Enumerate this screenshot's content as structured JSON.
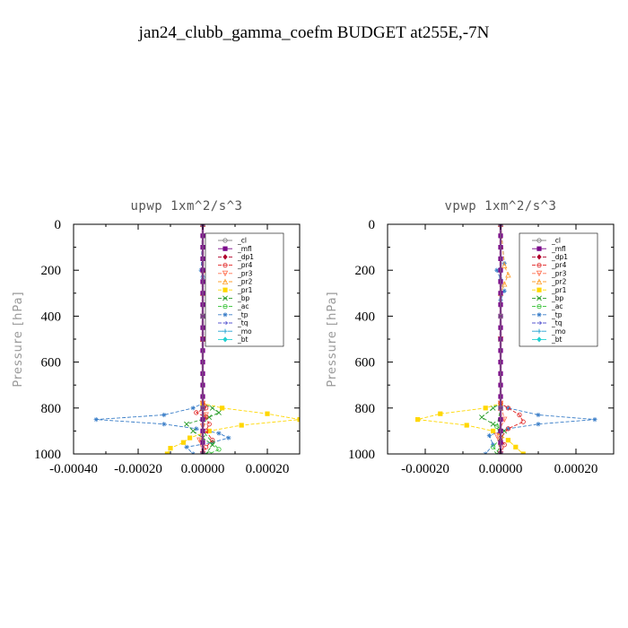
{
  "title": "jan24_clubb_gamma_coefm  BUDGET at255E,-7N",
  "chart_data": [
    {
      "type": "line",
      "title": "upwp   1xm^2/s^3",
      "ylabel": "Pressure [hPa]",
      "xlabel": "",
      "xlim": [
        -0.0004,
        0.0003
      ],
      "ylim": [
        1000,
        0
      ],
      "xticks": [
        -0.0004,
        -0.0002,
        0.0,
        0.0002
      ],
      "xtick_labels": [
        "-0.00040",
        "-0.00020",
        "0.00000",
        "0.00020"
      ],
      "yticks": [
        0,
        200,
        400,
        600,
        800,
        1000
      ],
      "ytick_labels": [
        "0",
        "200",
        "400",
        "600",
        "800",
        "1000"
      ],
      "legend_position": "top-right",
      "series": [
        {
          "name": "_cl",
          "color": "#808080",
          "dash": "solid",
          "marker": "circle",
          "x": [
            0,
            0,
            0,
            0
          ],
          "y": [
            0,
            400,
            800,
            1000
          ]
        },
        {
          "name": "_mfl",
          "color": "#7b0a8a",
          "dash": "solid",
          "marker": "square",
          "x": [
            0,
            0,
            0,
            0,
            0,
            0,
            0,
            0,
            0,
            0,
            0,
            0,
            0,
            0,
            0,
            0,
            0,
            0,
            0,
            0,
            0
          ],
          "y": [
            0,
            50,
            100,
            150,
            200,
            250,
            300,
            350,
            400,
            450,
            500,
            550,
            600,
            650,
            700,
            750,
            800,
            850,
            900,
            950,
            1000
          ]
        },
        {
          "name": "_dp1",
          "color": "#b0002a",
          "dash": "dashed",
          "marker": "diamond",
          "x": [
            0,
            0,
            0,
            0,
            0,
            0,
            0,
            0,
            0,
            0,
            0
          ],
          "y": [
            0,
            100,
            200,
            300,
            400,
            500,
            600,
            700,
            800,
            900,
            1000
          ]
        },
        {
          "name": "_pr4",
          "color": "#e02020",
          "dash": "dashed",
          "marker": "circle",
          "x": [
            0,
            0,
            0,
            5e-06,
            1e-05,
            -2e-05,
            1e-05,
            2e-05,
            1e-05,
            3e-05,
            1e-05,
            0
          ],
          "y": [
            0,
            400,
            750,
            790,
            800,
            820,
            840,
            870,
            900,
            940,
            970,
            1000
          ]
        },
        {
          "name": "_pr3",
          "color": "#ff7050",
          "dash": "dashed",
          "marker": "triangle-down",
          "x": [
            0,
            0,
            0,
            1e-05,
            0,
            -1e-05,
            0
          ],
          "y": [
            0,
            500,
            780,
            830,
            880,
            940,
            1000
          ]
        },
        {
          "name": "_pr2",
          "color": "#ffa030",
          "dash": "dashed",
          "marker": "triangle",
          "x": [
            0,
            2e-06,
            0,
            0,
            0,
            0
          ],
          "y": [
            0,
            200,
            300,
            500,
            800,
            1000
          ]
        },
        {
          "name": "_pr1",
          "color": "#ffd700",
          "dash": "dashed",
          "marker": "square",
          "x": [
            0,
            0,
            0,
            6e-05,
            0.0002,
            0.0003,
            0.00012,
            2e-05,
            -4e-05,
            -6e-05,
            -0.0001,
            -0.00011
          ],
          "y": [
            0,
            500,
            780,
            800,
            825,
            850,
            875,
            900,
            930,
            950,
            975,
            1000
          ]
        },
        {
          "name": "_bp",
          "color": "#2a9d2a",
          "dash": "dashed",
          "marker": "x",
          "x": [
            0,
            0,
            0,
            3e-05,
            5e-05,
            2e-05,
            -5e-05,
            -3e-05,
            0,
            3e-05,
            1e-05
          ],
          "y": [
            0,
            400,
            780,
            800,
            820,
            840,
            870,
            900,
            930,
            960,
            1000
          ]
        },
        {
          "name": "_ac",
          "color": "#30c030",
          "dash": "dashed",
          "marker": "circle",
          "x": [
            0,
            0,
            0,
            5e-06,
            0,
            3e-05,
            5e-05,
            2e-05
          ],
          "y": [
            0,
            500,
            800,
            850,
            900,
            950,
            980,
            1000
          ]
        },
        {
          "name": "_tp",
          "color": "#3a7ec8",
          "dash": "dashed",
          "marker": "star",
          "x": [
            0,
            -5e-06,
            0,
            0,
            0,
            -3e-05,
            -0.00012,
            -0.00033,
            -0.00012,
            -2e-05,
            5e-05,
            8e-05,
            3e-05,
            -5e-05,
            -3e-05
          ],
          "y": [
            0,
            200,
            230,
            500,
            780,
            800,
            830,
            850,
            870,
            890,
            910,
            930,
            950,
            970,
            1000
          ]
        },
        {
          "name": "_tq",
          "color": "#5a5ad0",
          "dash": "dashed",
          "marker": "arrow",
          "x": [
            0,
            0,
            0,
            0
          ],
          "y": [
            0,
            400,
            800,
            1000
          ]
        },
        {
          "name": "_mo",
          "color": "#20a0d0",
          "dash": "dashdot",
          "marker": "plus",
          "x": [
            0,
            0,
            0,
            0
          ],
          "y": [
            0,
            400,
            800,
            1000
          ]
        },
        {
          "name": "_bt",
          "color": "#20d0d0",
          "dash": "solid",
          "marker": "diamond",
          "x": [
            0,
            0,
            0,
            0
          ],
          "y": [
            0,
            400,
            800,
            1000
          ]
        }
      ]
    },
    {
      "type": "line",
      "title": "vpwp   1xm^2/s^3",
      "ylabel": "Pressure [hPa]",
      "xlabel": "",
      "xlim": [
        -0.0003,
        0.0003
      ],
      "ylim": [
        1000,
        0
      ],
      "xticks": [
        -0.0002,
        0.0,
        0.0002
      ],
      "xtick_labels": [
        "-0.00020",
        "0.00000",
        "0.00020"
      ],
      "yticks": [
        0,
        200,
        400,
        600,
        800,
        1000
      ],
      "ytick_labels": [
        "0",
        "200",
        "400",
        "600",
        "800",
        "1000"
      ],
      "legend_position": "top-right",
      "series": [
        {
          "name": "_cl",
          "color": "#808080",
          "dash": "solid",
          "marker": "circle",
          "x": [
            0,
            0,
            0,
            0
          ],
          "y": [
            0,
            400,
            800,
            1000
          ]
        },
        {
          "name": "_mfl",
          "color": "#7b0a8a",
          "dash": "solid",
          "marker": "square",
          "x": [
            0,
            0,
            0,
            0,
            0,
            0,
            0,
            0,
            0,
            0,
            0,
            0,
            0,
            0,
            0,
            0,
            0,
            0,
            0,
            0,
            0
          ],
          "y": [
            0,
            50,
            100,
            150,
            200,
            250,
            300,
            350,
            400,
            450,
            500,
            550,
            600,
            650,
            700,
            750,
            800,
            850,
            900,
            950,
            1000
          ]
        },
        {
          "name": "_dp1",
          "color": "#b0002a",
          "dash": "dashed",
          "marker": "diamond",
          "x": [
            0,
            0,
            0,
            0,
            0,
            0,
            0,
            0,
            0,
            0,
            0
          ],
          "y": [
            0,
            100,
            200,
            300,
            400,
            500,
            600,
            700,
            800,
            900,
            1000
          ]
        },
        {
          "name": "_pr4",
          "color": "#e02020",
          "dash": "dashed",
          "marker": "circle",
          "x": [
            0,
            0,
            0,
            2e-05,
            5e-05,
            6e-05,
            2e-05,
            0,
            1e-05,
            0
          ],
          "y": [
            0,
            500,
            780,
            800,
            830,
            860,
            890,
            930,
            960,
            1000
          ]
        },
        {
          "name": "_pr3",
          "color": "#ff7050",
          "dash": "dashed",
          "marker": "triangle-down",
          "x": [
            0,
            0,
            0,
            1e-05,
            -1e-05,
            0
          ],
          "y": [
            0,
            500,
            780,
            850,
            920,
            1000
          ]
        },
        {
          "name": "_pr2",
          "color": "#ffa030",
          "dash": "dashed",
          "marker": "triangle",
          "x": [
            0,
            1e-05,
            2e-05,
            1e-05,
            0,
            0,
            0
          ],
          "y": [
            0,
            180,
            220,
            260,
            300,
            800,
            1000
          ]
        },
        {
          "name": "_pr1",
          "color": "#ffd700",
          "dash": "dashed",
          "marker": "square",
          "x": [
            0,
            0,
            0,
            -4e-05,
            -0.00016,
            -0.00022,
            -9e-05,
            -2e-05,
            2e-05,
            4e-05,
            6e-05
          ],
          "y": [
            0,
            500,
            780,
            800,
            825,
            850,
            875,
            900,
            940,
            970,
            1000
          ]
        },
        {
          "name": "_bp",
          "color": "#2a9d2a",
          "dash": "dashed",
          "marker": "x",
          "x": [
            0,
            0,
            0,
            -2e-05,
            -5e-05,
            -2e-05,
            1e-05,
            0,
            -1e-05
          ],
          "y": [
            0,
            500,
            780,
            800,
            840,
            870,
            900,
            950,
            1000
          ]
        },
        {
          "name": "_ac",
          "color": "#30c030",
          "dash": "dashed",
          "marker": "circle",
          "x": [
            0,
            0,
            0,
            -1e-05,
            0,
            -2e-05,
            0
          ],
          "y": [
            0,
            500,
            800,
            880,
            930,
            970,
            1000
          ]
        },
        {
          "name": "_tp",
          "color": "#3a7ec8",
          "dash": "dashed",
          "marker": "star",
          "x": [
            0,
            1e-05,
            -1e-05,
            0,
            1e-05,
            0,
            0,
            2e-05,
            0.0001,
            0.00025,
            0.0001,
            2e-05,
            -3e-05,
            -2e-05,
            -4e-05
          ],
          "y": [
            0,
            170,
            200,
            240,
            290,
            330,
            780,
            800,
            830,
            850,
            870,
            890,
            920,
            960,
            1000
          ]
        },
        {
          "name": "_tq",
          "color": "#5a5ad0",
          "dash": "dashed",
          "marker": "arrow",
          "x": [
            0,
            0,
            0,
            0
          ],
          "y": [
            0,
            400,
            800,
            1000
          ]
        },
        {
          "name": "_mo",
          "color": "#20a0d0",
          "dash": "dashdot",
          "marker": "plus",
          "x": [
            0,
            0,
            0,
            0
          ],
          "y": [
            0,
            400,
            800,
            1000
          ]
        },
        {
          "name": "_bt",
          "color": "#20d0d0",
          "dash": "solid",
          "marker": "diamond",
          "x": [
            0,
            0,
            0,
            0
          ],
          "y": [
            0,
            400,
            800,
            1000
          ]
        }
      ]
    }
  ]
}
